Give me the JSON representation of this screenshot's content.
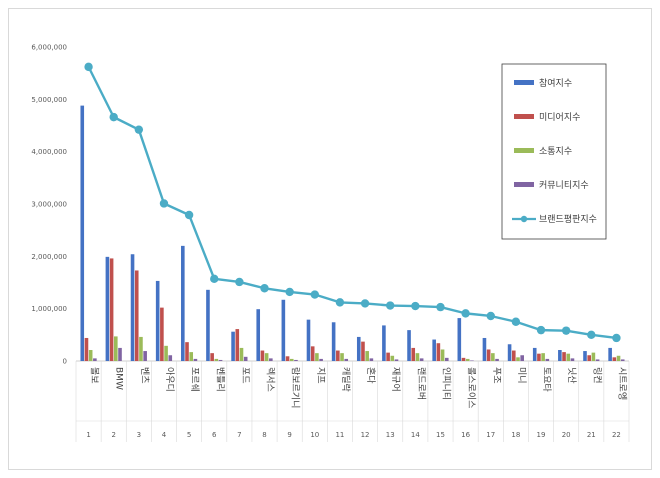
{
  "chart_data": {
    "type": "bar",
    "title": "",
    "xlabel": "",
    "ylabel": "",
    "ylim": [
      0,
      6000000
    ],
    "yticks": [
      "0",
      "1,000,000",
      "2,000,000",
      "3,000,000",
      "4,000,000",
      "5,000,000",
      "6,000,000"
    ],
    "categories": [
      "볼보",
      "BMW",
      "벤츠",
      "아우디",
      "포르쉐",
      "벤틀리",
      "포드",
      "렉서스",
      "람보르기니",
      "지프",
      "캐딜락",
      "혼다",
      "재규어",
      "랜드로버",
      "인피니티",
      "롤스로이스",
      "푸조",
      "미니",
      "토요타",
      "닛산",
      "링컨",
      "시트로엥"
    ],
    "ranks": [
      "1",
      "2",
      "3",
      "4",
      "5",
      "6",
      "7",
      "8",
      "9",
      "10",
      "11",
      "12",
      "13",
      "14",
      "15",
      "16",
      "17",
      "18",
      "19",
      "20",
      "21",
      "22"
    ],
    "series": [
      {
        "name": "참여지수",
        "kind": "bar",
        "color": "#4472c4",
        "values": [
          4880000,
          1990000,
          2040000,
          1530000,
          2200000,
          1360000,
          560000,
          990000,
          1170000,
          790000,
          740000,
          460000,
          680000,
          590000,
          410000,
          820000,
          440000,
          320000,
          250000,
          210000,
          190000,
          250000
        ]
      },
      {
        "name": "미디어지수",
        "kind": "bar",
        "color": "#c0504d",
        "values": [
          440000,
          1960000,
          1730000,
          1020000,
          360000,
          150000,
          610000,
          200000,
          90000,
          280000,
          200000,
          370000,
          160000,
          250000,
          340000,
          60000,
          220000,
          200000,
          140000,
          170000,
          110000,
          70000
        ]
      },
      {
        "name": "소통지수",
        "kind": "bar",
        "color": "#9bbb59",
        "values": [
          210000,
          470000,
          460000,
          290000,
          170000,
          40000,
          250000,
          150000,
          40000,
          150000,
          150000,
          190000,
          100000,
          150000,
          220000,
          40000,
          150000,
          70000,
          150000,
          140000,
          160000,
          100000
        ]
      },
      {
        "name": "커뮤니티지수",
        "kind": "bar",
        "color": "#8064a2",
        "values": [
          50000,
          250000,
          190000,
          110000,
          40000,
          20000,
          80000,
          50000,
          20000,
          40000,
          40000,
          50000,
          30000,
          50000,
          60000,
          10000,
          40000,
          110000,
          40000,
          50000,
          30000,
          30000
        ]
      },
      {
        "name": "브랜드평판지수",
        "kind": "line",
        "color": "#4bacc6",
        "values": [
          5620000,
          4660000,
          4420000,
          3010000,
          2790000,
          1570000,
          1510000,
          1390000,
          1320000,
          1270000,
          1120000,
          1100000,
          1060000,
          1050000,
          1030000,
          910000,
          860000,
          750000,
          590000,
          580000,
          500000,
          440000
        ]
      }
    ],
    "legend_position": "right"
  }
}
